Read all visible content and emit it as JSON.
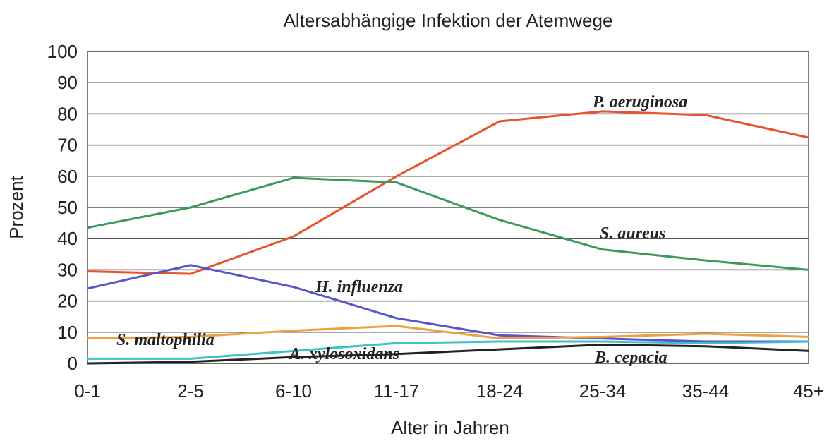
{
  "chart_data": {
    "type": "line",
    "title": "Altersabhängige Infektion der Atemwege",
    "xlabel": "Alter in Jahren",
    "ylabel": "Prozent",
    "categories": [
      "0-1",
      "2-5",
      "6-10",
      "11-17",
      "18-24",
      "25-34",
      "35-44",
      "45+"
    ],
    "ylim": [
      0,
      100
    ],
    "yticks": [
      0,
      10,
      20,
      30,
      40,
      50,
      60,
      70,
      80,
      90,
      100
    ],
    "grid": true,
    "series": [
      {
        "name": "P. aeruginosa",
        "color": "#e8532c",
        "values": [
          29.5,
          28.7,
          40.7,
          60,
          77.6,
          80.8,
          79.6,
          72.4
        ]
      },
      {
        "name": "S. aureus",
        "color": "#3a9a5c",
        "values": [
          43.5,
          50,
          59.5,
          58,
          46,
          36.5,
          33,
          30
        ]
      },
      {
        "name": "H. influenza",
        "color": "#5555cc",
        "values": [
          24,
          31.5,
          24.5,
          14.5,
          9,
          8,
          7,
          7
        ]
      },
      {
        "name": "S. maltophilia",
        "color": "#f0a040",
        "values": [
          8,
          8.5,
          10.5,
          12,
          8,
          8.5,
          9.5,
          8.5
        ]
      },
      {
        "name": "A. xylosoxidans",
        "color": "#40c0c8",
        "values": [
          1.5,
          1.5,
          4,
          6.5,
          7,
          7,
          6.5,
          7
        ]
      },
      {
        "name": "B. cepacia",
        "color": "#222222",
        "values": [
          0,
          0.5,
          2,
          3,
          4.5,
          6,
          5.5,
          4
        ]
      }
    ]
  }
}
